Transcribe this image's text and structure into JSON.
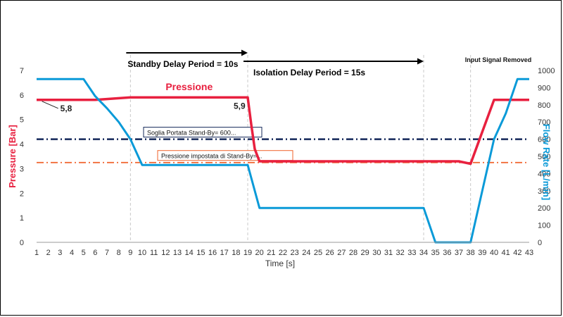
{
  "colors": {
    "pressure": "#e8203f",
    "flow": "#0a9ad8",
    "standby_flow_threshold": "#14285a",
    "standby_pressure_threshold": "#f0622a",
    "grid": "#c8c8c8"
  },
  "chart_data": {
    "type": "line",
    "title": "",
    "xlabel": "Time [s]",
    "ylabel_left": "Pressure [Bar]",
    "ylabel_right": "Flow Rate [L/min]",
    "x": [
      1,
      2,
      3,
      4,
      5,
      6,
      7,
      8,
      9,
      10,
      11,
      12,
      13,
      14,
      15,
      16,
      17,
      18,
      19,
      20,
      21,
      22,
      23,
      24,
      25,
      26,
      27,
      28,
      29,
      30,
      31,
      32,
      33,
      34,
      35,
      36,
      37,
      38,
      39,
      40,
      41,
      42,
      43
    ],
    "xlim": [
      1,
      43
    ],
    "ylim_left": [
      0,
      7
    ],
    "ylim_right": [
      0,
      1000
    ],
    "yticks_left": [
      0,
      1,
      2,
      3,
      4,
      5,
      6,
      7
    ],
    "yticks_right": [
      0,
      100,
      200,
      300,
      400,
      500,
      600,
      700,
      800,
      900,
      1000
    ],
    "grid": "vertical-only",
    "series": [
      {
        "name": "Pressione",
        "axis": "left",
        "color_key": "pressure",
        "points": [
          [
            1,
            5.8
          ],
          [
            6,
            5.8
          ],
          [
            9,
            5.9
          ],
          [
            19,
            5.9
          ],
          [
            19.3,
            4.8
          ],
          [
            19.6,
            3.8
          ],
          [
            20,
            3.3
          ],
          [
            37,
            3.3
          ],
          [
            38,
            3.2
          ],
          [
            39,
            4.5
          ],
          [
            40,
            5.8
          ],
          [
            43,
            5.8
          ]
        ]
      },
      {
        "name": "",
        "axis": "right",
        "color_key": "flow",
        "points": [
          [
            1,
            950
          ],
          [
            5,
            950
          ],
          [
            6,
            850
          ],
          [
            7,
            780
          ],
          [
            8,
            700
          ],
          [
            9,
            600
          ],
          [
            10,
            450
          ],
          [
            19,
            450
          ],
          [
            20,
            200
          ],
          [
            34,
            200
          ],
          [
            35,
            0
          ],
          [
            38,
            0
          ],
          [
            39,
            300
          ],
          [
            40,
            600
          ],
          [
            41,
            750
          ],
          [
            42,
            950
          ],
          [
            43,
            950
          ]
        ]
      }
    ],
    "reference_lines": [
      {
        "label": "Soglia Portata Stand-By= 600...",
        "axis": "right",
        "value": 600,
        "color_key": "standby_flow_threshold",
        "style": "dash-dot"
      },
      {
        "label": "Pressione impostata di Stand-By=...",
        "axis": "left",
        "value": 3.25,
        "color_key": "standby_pressure_threshold",
        "style": "dash-dot"
      }
    ],
    "annotations": [
      {
        "text": "5,8",
        "x": 2.3,
        "y_left": 5.8
      },
      {
        "text": "5,9",
        "x": 17.8,
        "y_left": 5.9
      },
      {
        "text": "Pressione",
        "x": 12,
        "y_left": 6.2
      }
    ],
    "period_arrows": [
      {
        "label": "Standby Delay Period = 10s",
        "x_start": 9,
        "x_end": 19
      },
      {
        "label": "Isolation Delay Period = 15s",
        "x_start": 19,
        "x_end": 34
      }
    ],
    "event_label": "Input Signal Removed"
  }
}
